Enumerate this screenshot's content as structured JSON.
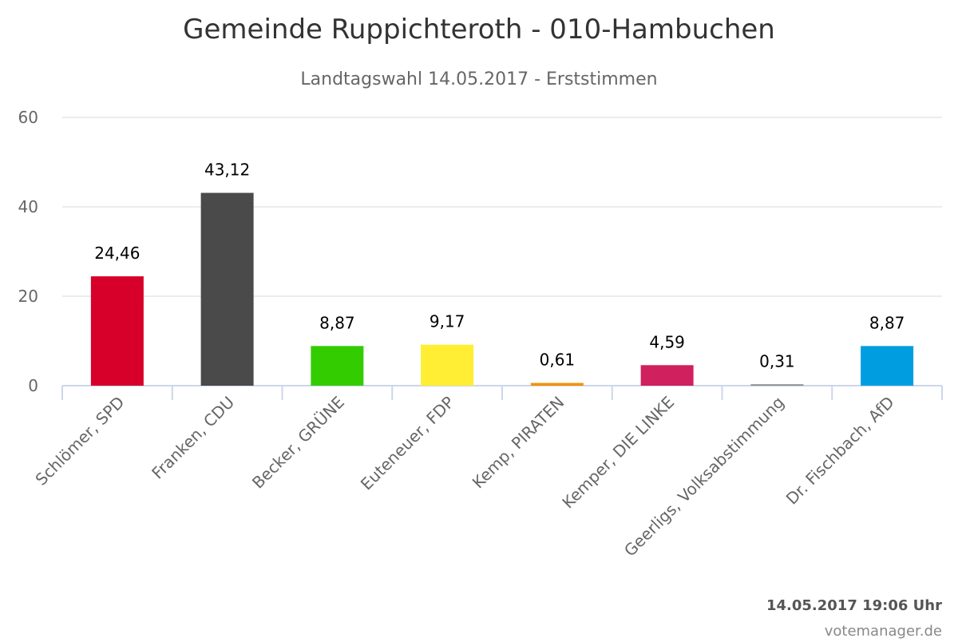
{
  "chart_data": {
    "type": "bar",
    "title": "Gemeinde Ruppichteroth - 010-Hambuchen",
    "subtitle": "Landtagswahl 14.05.2017 - Erststimmen",
    "categories": [
      "Schlömer, SPD",
      "Franken, CDU",
      "Becker, GRÜNE",
      "Euteneuer, FDP",
      "Kemp, PIRATEN",
      "Kemper, DIE LINKE",
      "Geerligs, Volksabstimmung",
      "Dr. Fischbach, AfD"
    ],
    "values": [
      24.46,
      43.12,
      8.87,
      9.17,
      0.61,
      4.59,
      0.31,
      8.87
    ],
    "data_labels": [
      "24,46",
      "43,12",
      "8,87",
      "9,17",
      "0,61",
      "4,59",
      "0,31",
      "8,87"
    ],
    "colors": [
      "#d7002b",
      "#4a4a4a",
      "#33cc00",
      "#ffee33",
      "#f39200",
      "#d0205e",
      "#888888",
      "#009ee0"
    ],
    "ylim": [
      0,
      60
    ],
    "yticks": [
      0,
      20,
      40,
      60
    ],
    "grid": true,
    "legend": "none"
  },
  "footer": {
    "timestamp": "14.05.2017 19:06 Uhr",
    "credit": "votemanager.de"
  }
}
